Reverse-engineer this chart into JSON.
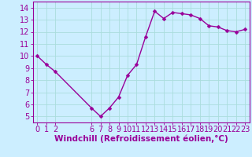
{
  "x": [
    0,
    1,
    2,
    6,
    7,
    8,
    9,
    10,
    11,
    12,
    13,
    14,
    15,
    16,
    17,
    18,
    19,
    20,
    21,
    22,
    23
  ],
  "y": [
    10.0,
    9.3,
    8.7,
    5.7,
    5.0,
    5.7,
    6.6,
    8.4,
    9.3,
    11.6,
    13.7,
    13.1,
    13.6,
    13.5,
    13.4,
    13.1,
    12.5,
    12.4,
    12.1,
    12.0,
    12.2
  ],
  "line_color": "#990099",
  "marker_color": "#990099",
  "bg_color": "#cceeff",
  "grid_color": "#aadddd",
  "xlabel": "Windchill (Refroidissement éolien,°C)",
  "xlabel_color": "#990099",
  "tick_color": "#990099",
  "spine_color": "#990099",
  "xlim": [
    -0.5,
    23.5
  ],
  "ylim": [
    4.5,
    14.5
  ],
  "yticks": [
    5,
    6,
    7,
    8,
    9,
    10,
    11,
    12,
    13,
    14
  ],
  "xticks": [
    0,
    1,
    2,
    6,
    7,
    8,
    9,
    10,
    11,
    12,
    13,
    14,
    15,
    16,
    17,
    18,
    19,
    20,
    21,
    22,
    23
  ],
  "marker_size": 2.5,
  "line_width": 1.0,
  "tick_fontsize": 7.0,
  "xlabel_fontsize": 7.5
}
